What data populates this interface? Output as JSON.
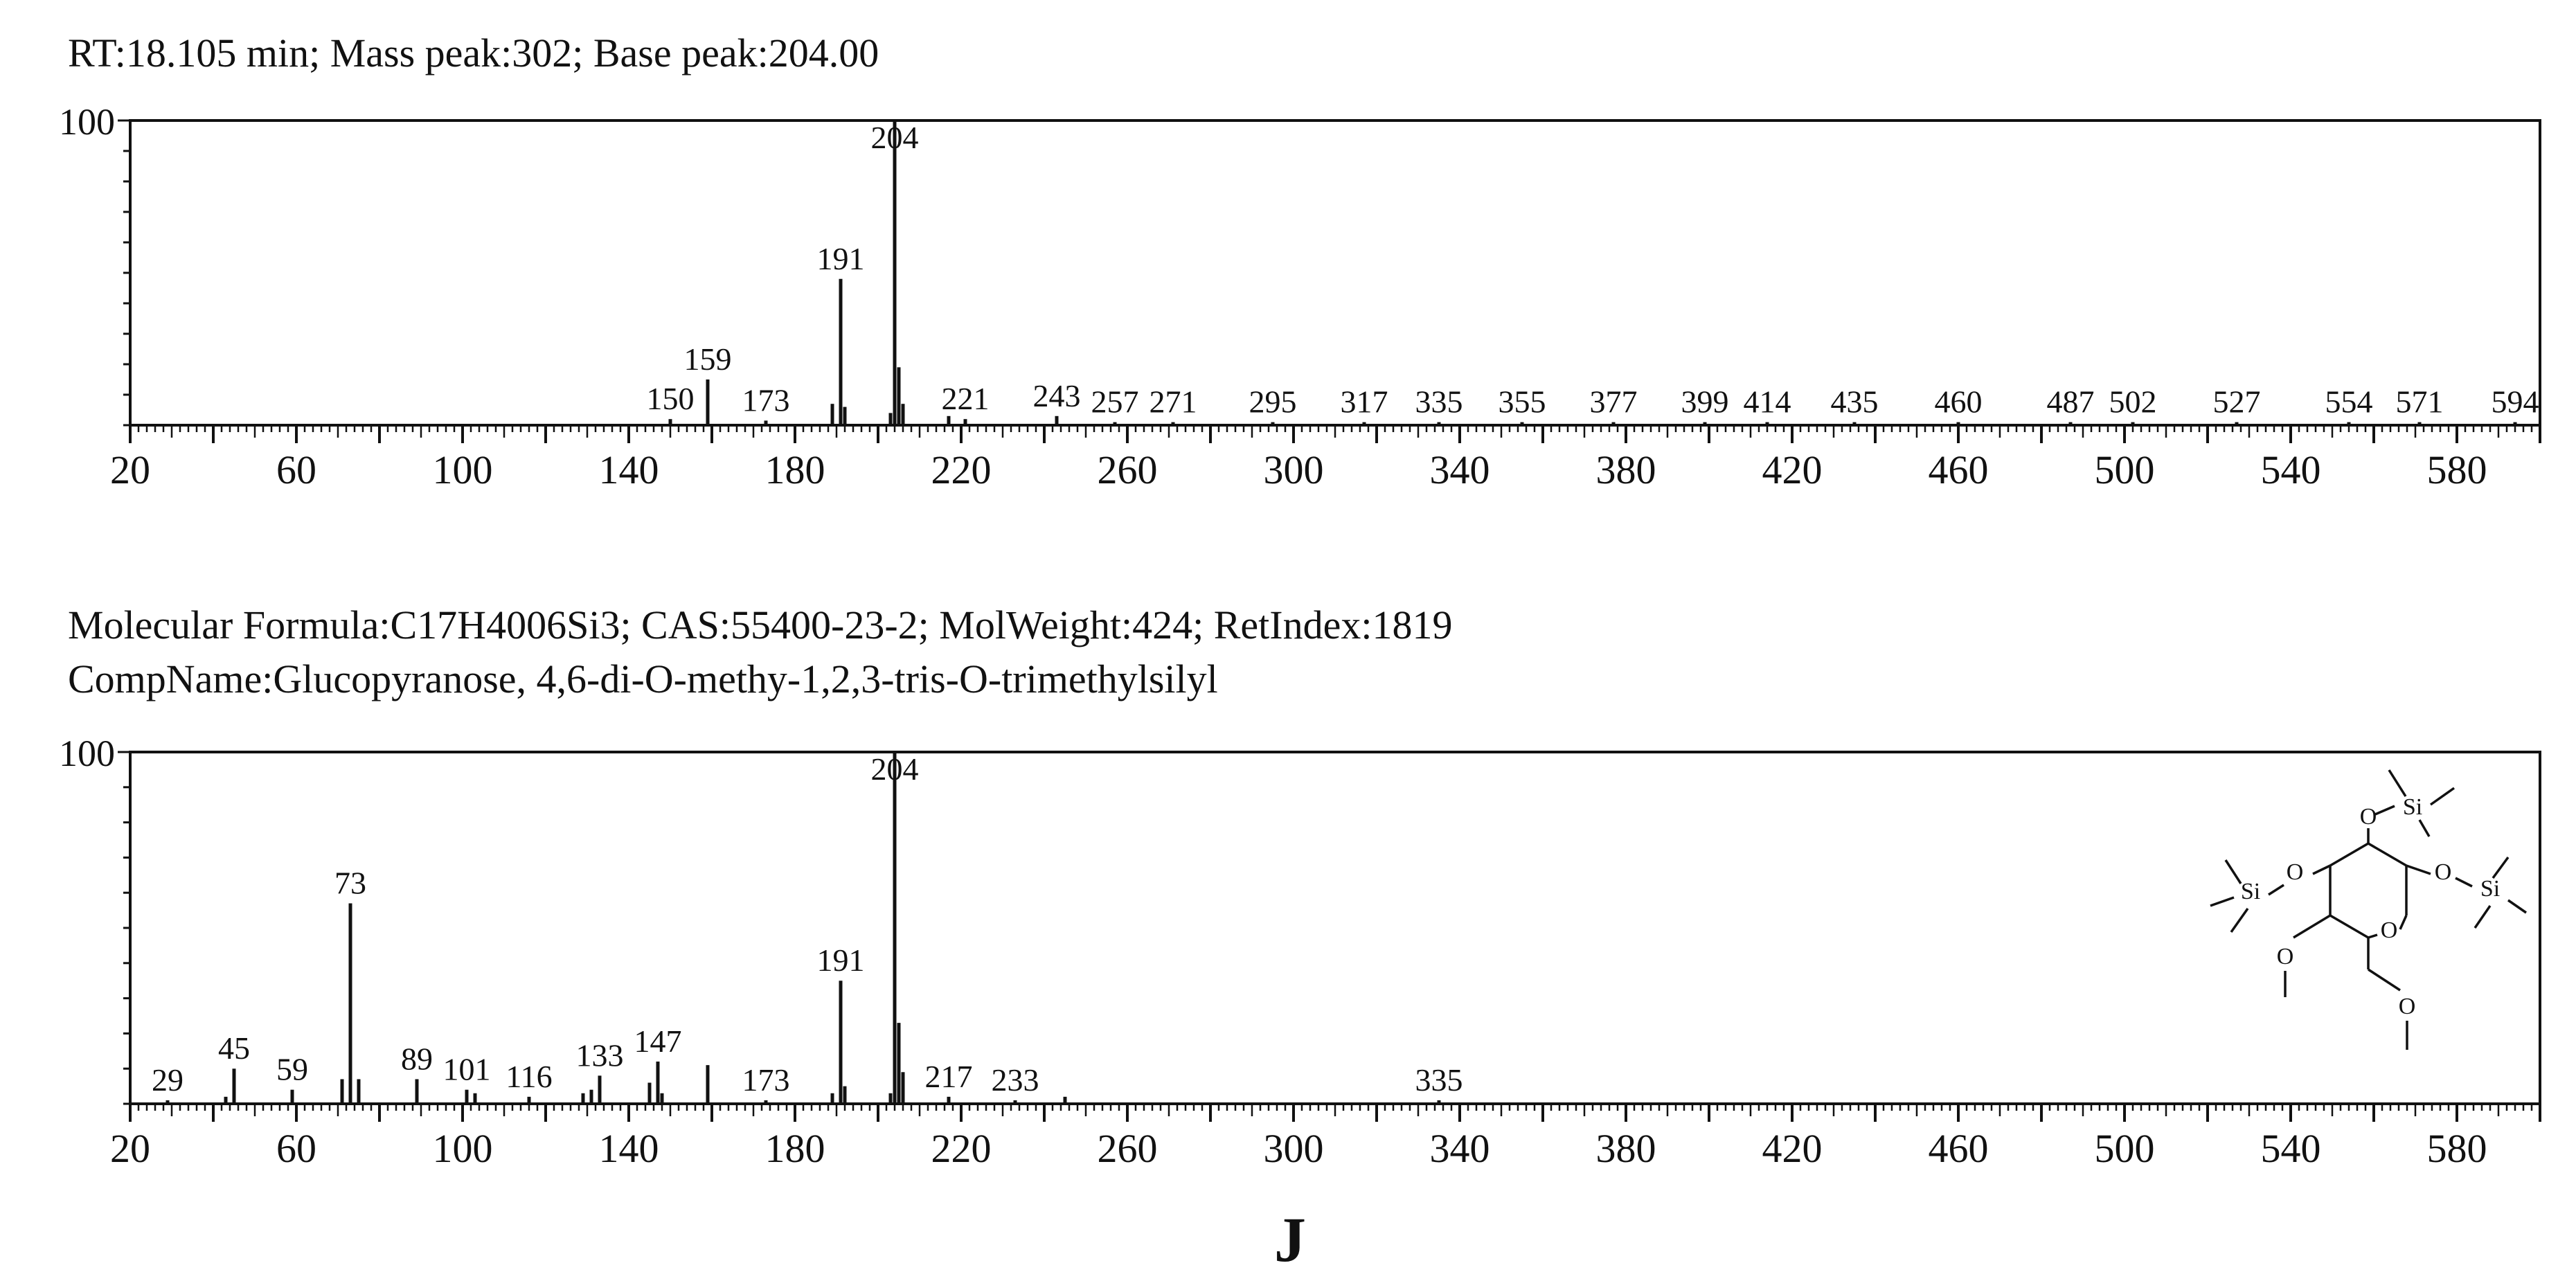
{
  "header": {
    "top_caption": "RT:18.105 min; Mass peak:302; Base peak:204.00",
    "formula_caption": "Molecular  Formula:C17H4006Si3; CAS:55400-23-2; MolWeight:424; RetIndex:1819",
    "name_caption": "CompName:Glucopyranose, 4,6-di-O-methy-1,2,3-tris-O-trimethylsilyl",
    "panel_label": "J"
  },
  "colors": {
    "ink": "#111111",
    "background": "#ffffff"
  },
  "chart_data": [
    {
      "type": "bar",
      "xlim": [
        20,
        600
      ],
      "ylim": [
        0,
        100
      ],
      "ytick_label": "100",
      "xticks": [
        20,
        60,
        100,
        140,
        180,
        220,
        260,
        300,
        340,
        380,
        420,
        460,
        500,
        540,
        580
      ],
      "peaks": [
        {
          "x": 150,
          "y": 2,
          "label": "150"
        },
        {
          "x": 159,
          "y": 15,
          "label": "159"
        },
        {
          "x": 173,
          "y": 1.5,
          "label": "173"
        },
        {
          "x": 189,
          "y": 7,
          "label": ""
        },
        {
          "x": 191,
          "y": 48,
          "label": "191"
        },
        {
          "x": 192,
          "y": 6,
          "label": ""
        },
        {
          "x": 203,
          "y": 4,
          "label": ""
        },
        {
          "x": 204,
          "y": 100,
          "label": "204"
        },
        {
          "x": 205,
          "y": 19,
          "label": ""
        },
        {
          "x": 206,
          "y": 7,
          "label": ""
        },
        {
          "x": 217,
          "y": 3,
          "label": ""
        },
        {
          "x": 221,
          "y": 2,
          "label": "221"
        },
        {
          "x": 243,
          "y": 3,
          "label": "243"
        },
        {
          "x": 257,
          "y": 1,
          "label": "257"
        },
        {
          "x": 271,
          "y": 1,
          "label": "271"
        },
        {
          "x": 295,
          "y": 1,
          "label": "295"
        },
        {
          "x": 317,
          "y": 1,
          "label": "317"
        },
        {
          "x": 335,
          "y": 1,
          "label": "335"
        },
        {
          "x": 355,
          "y": 1,
          "label": "355"
        },
        {
          "x": 377,
          "y": 1,
          "label": "377"
        },
        {
          "x": 399,
          "y": 1,
          "label": "399"
        },
        {
          "x": 414,
          "y": 1,
          "label": "414"
        },
        {
          "x": 435,
          "y": 1,
          "label": "435"
        },
        {
          "x": 460,
          "y": 1,
          "label": "460"
        },
        {
          "x": 487,
          "y": 1,
          "label": "487"
        },
        {
          "x": 502,
          "y": 1,
          "label": "502"
        },
        {
          "x": 527,
          "y": 1,
          "label": "527"
        },
        {
          "x": 554,
          "y": 1,
          "label": "554"
        },
        {
          "x": 571,
          "y": 1,
          "label": "571"
        },
        {
          "x": 594,
          "y": 1,
          "label": "594"
        }
      ]
    },
    {
      "type": "bar",
      "xlim": [
        20,
        600
      ],
      "ylim": [
        0,
        100
      ],
      "ytick_label": "100",
      "xticks": [
        20,
        60,
        100,
        140,
        180,
        220,
        260,
        300,
        340,
        380,
        420,
        460,
        500,
        540,
        580
      ],
      "peaks": [
        {
          "x": 29,
          "y": 1,
          "label": "29"
        },
        {
          "x": 43,
          "y": 2,
          "label": ""
        },
        {
          "x": 45,
          "y": 10,
          "label": "45"
        },
        {
          "x": 59,
          "y": 4,
          "label": "59"
        },
        {
          "x": 71,
          "y": 7,
          "label": ""
        },
        {
          "x": 73,
          "y": 57,
          "label": "73"
        },
        {
          "x": 75,
          "y": 7,
          "label": ""
        },
        {
          "x": 89,
          "y": 7,
          "label": "89"
        },
        {
          "x": 101,
          "y": 4,
          "label": "101"
        },
        {
          "x": 103,
          "y": 3,
          "label": ""
        },
        {
          "x": 116,
          "y": 2,
          "label": "116"
        },
        {
          "x": 129,
          "y": 3,
          "label": ""
        },
        {
          "x": 131,
          "y": 4,
          "label": ""
        },
        {
          "x": 133,
          "y": 8,
          "label": "133"
        },
        {
          "x": 145,
          "y": 6,
          "label": ""
        },
        {
          "x": 147,
          "y": 12,
          "label": "147"
        },
        {
          "x": 148,
          "y": 3,
          "label": ""
        },
        {
          "x": 159,
          "y": 11,
          "label": ""
        },
        {
          "x": 173,
          "y": 1,
          "label": "173"
        },
        {
          "x": 189,
          "y": 3,
          "label": ""
        },
        {
          "x": 191,
          "y": 35,
          "label": "191"
        },
        {
          "x": 192,
          "y": 5,
          "label": ""
        },
        {
          "x": 203,
          "y": 3,
          "label": ""
        },
        {
          "x": 204,
          "y": 100,
          "label": "204"
        },
        {
          "x": 205,
          "y": 23,
          "label": ""
        },
        {
          "x": 206,
          "y": 9,
          "label": ""
        },
        {
          "x": 217,
          "y": 2,
          "label": "217"
        },
        {
          "x": 233,
          "y": 1,
          "label": "233"
        },
        {
          "x": 245,
          "y": 2,
          "label": ""
        },
        {
          "x": 335,
          "y": 1,
          "label": "335"
        }
      ]
    }
  ],
  "structure": {
    "atoms": [
      {
        "sym": "Si"
      },
      {
        "sym": "O"
      },
      {
        "sym": "O"
      },
      {
        "sym": "Si"
      },
      {
        "sym": "O"
      },
      {
        "sym": "Si"
      },
      {
        "sym": "O"
      },
      {
        "sym": "O"
      },
      {
        "sym": "O"
      }
    ]
  }
}
